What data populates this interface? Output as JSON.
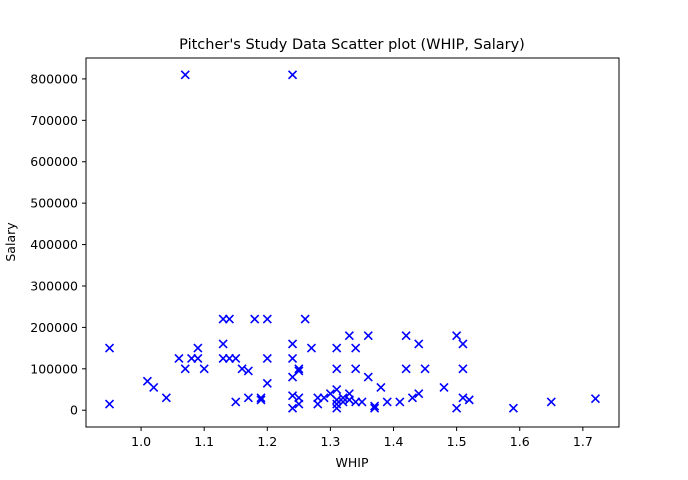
{
  "chart_data": {
    "type": "scatter",
    "title": "Pitcher's Study Data Scatter plot (WHIP, Salary)",
    "xlabel": "WHIP",
    "ylabel": "Salary",
    "xlim": [
      0.9127,
      1.7573
    ],
    "ylim": [
      -40500,
      850500
    ],
    "xticks": [
      1.0,
      1.1,
      1.2,
      1.3,
      1.4,
      1.5,
      1.6,
      1.7
    ],
    "xtick_labels": [
      "1.0",
      "1.1",
      "1.2",
      "1.3",
      "1.4",
      "1.5",
      "1.6",
      "1.7"
    ],
    "yticks": [
      0,
      100000,
      200000,
      300000,
      400000,
      500000,
      600000,
      700000,
      800000
    ],
    "ytick_labels": [
      "0",
      "100000",
      "200000",
      "300000",
      "400000",
      "500000",
      "600000",
      "700000",
      "800000"
    ],
    "marker": "x",
    "color": "#0000ff",
    "grid": false,
    "series": [
      {
        "points": [
          [
            0.95,
            150000
          ],
          [
            0.95,
            15000
          ],
          [
            1.01,
            70000
          ],
          [
            1.02,
            55000
          ],
          [
            1.04,
            30000
          ],
          [
            1.06,
            125000
          ],
          [
            1.07,
            100000
          ],
          [
            1.07,
            810000
          ],
          [
            1.08,
            125000
          ],
          [
            1.09,
            150000
          ],
          [
            1.09,
            125000
          ],
          [
            1.1,
            100000
          ],
          [
            1.13,
            220000
          ],
          [
            1.13,
            160000
          ],
          [
            1.13,
            125000
          ],
          [
            1.14,
            220000
          ],
          [
            1.14,
            125000
          ],
          [
            1.15,
            125000
          ],
          [
            1.15,
            20000
          ],
          [
            1.16,
            100000
          ],
          [
            1.17,
            95000
          ],
          [
            1.17,
            30000
          ],
          [
            1.18,
            220000
          ],
          [
            1.19,
            30000
          ],
          [
            1.19,
            25000
          ],
          [
            1.2,
            220000
          ],
          [
            1.2,
            125000
          ],
          [
            1.2,
            65000
          ],
          [
            1.24,
            810000
          ],
          [
            1.24,
            160000
          ],
          [
            1.24,
            125000
          ],
          [
            1.24,
            80000
          ],
          [
            1.24,
            35000
          ],
          [
            1.24,
            5000
          ],
          [
            1.25,
            100000
          ],
          [
            1.25,
            95000
          ],
          [
            1.25,
            30000
          ],
          [
            1.25,
            15000
          ],
          [
            1.26,
            220000
          ],
          [
            1.27,
            150000
          ],
          [
            1.28,
            30000
          ],
          [
            1.28,
            15000
          ],
          [
            1.29,
            30000
          ],
          [
            1.3,
            40000
          ],
          [
            1.31,
            150000
          ],
          [
            1.31,
            100000
          ],
          [
            1.31,
            50000
          ],
          [
            1.31,
            25000
          ],
          [
            1.31,
            15000
          ],
          [
            1.31,
            5000
          ],
          [
            1.32,
            30000
          ],
          [
            1.32,
            20000
          ],
          [
            1.33,
            180000
          ],
          [
            1.33,
            40000
          ],
          [
            1.33,
            25000
          ],
          [
            1.34,
            150000
          ],
          [
            1.34,
            100000
          ],
          [
            1.34,
            20000
          ],
          [
            1.35,
            20000
          ],
          [
            1.36,
            180000
          ],
          [
            1.36,
            80000
          ],
          [
            1.37,
            10000
          ],
          [
            1.37,
            5000
          ],
          [
            1.38,
            55000
          ],
          [
            1.39,
            20000
          ],
          [
            1.41,
            20000
          ],
          [
            1.42,
            180000
          ],
          [
            1.42,
            100000
          ],
          [
            1.43,
            30000
          ],
          [
            1.44,
            160000
          ],
          [
            1.44,
            40000
          ],
          [
            1.45,
            100000
          ],
          [
            1.48,
            55000
          ],
          [
            1.5,
            180000
          ],
          [
            1.5,
            5000
          ],
          [
            1.51,
            160000
          ],
          [
            1.51,
            100000
          ],
          [
            1.51,
            30000
          ],
          [
            1.52,
            25000
          ],
          [
            1.59,
            5000
          ],
          [
            1.65,
            20000
          ],
          [
            1.72,
            28000
          ]
        ]
      }
    ]
  }
}
